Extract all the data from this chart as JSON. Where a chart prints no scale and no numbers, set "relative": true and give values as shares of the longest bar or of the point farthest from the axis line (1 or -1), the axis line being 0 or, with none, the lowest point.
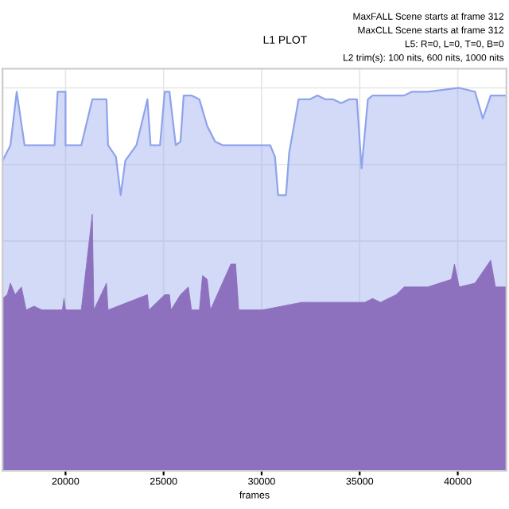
{
  "chart_data": {
    "type": "area",
    "title": "L1 PLOT",
    "xlabel": "frames",
    "annotations": [
      "MaxFALL Scene starts at frame 312",
      "MaxCLL Scene starts at frame 312",
      "L5: R=0, L=0, T=0, B=0",
      "L2 trim(s): 100 nits, 600 nits, 1000 nits"
    ],
    "relative": true,
    "xlim": [
      16788,
      42484
    ],
    "xticks": [
      20000,
      25000,
      30000,
      35000,
      40000
    ],
    "grid": true,
    "legend": false,
    "series": [
      {
        "color": "#8fa3ec",
        "x": [
          16788,
          17190,
          17510,
          17912,
          18394,
          19438,
          19599,
          20000,
          20001,
          20803,
          21365,
          21445,
          22088,
          22168,
          22570,
          22811,
          23051,
          23614,
          24176,
          24336,
          24818,
          25059,
          25300,
          25621,
          25862,
          26023,
          26424,
          26826,
          27227,
          27629,
          28030,
          28833,
          30038,
          30439,
          30680,
          30841,
          31242,
          31403,
          31884,
          32447,
          32848,
          33250,
          33651,
          34053,
          34454,
          34856,
          35096,
          35418,
          35659,
          36060,
          37265,
          37666,
          38469,
          40075,
          40878,
          41280,
          41681,
          42484
        ],
        "values": [
          0.81,
          0.85,
          0.99,
          0.85,
          0.85,
          0.85,
          0.99,
          0.99,
          0.85,
          0.85,
          0.97,
          0.97,
          0.97,
          0.85,
          0.82,
          0.72,
          0.81,
          0.85,
          0.97,
          0.85,
          0.85,
          0.99,
          0.99,
          0.85,
          0.86,
          0.98,
          0.98,
          0.97,
          0.9,
          0.86,
          0.85,
          0.85,
          0.85,
          0.85,
          0.82,
          0.72,
          0.72,
          0.83,
          0.97,
          0.97,
          0.98,
          0.97,
          0.97,
          0.96,
          0.97,
          0.97,
          0.79,
          0.97,
          0.98,
          0.98,
          0.98,
          0.99,
          0.99,
          1.0,
          0.99,
          0.92,
          0.98,
          0.98
        ]
      },
      {
        "color": "#8a6bba",
        "x": [
          16788,
          17029,
          17190,
          17430,
          17751,
          17993,
          18394,
          18796,
          19839,
          19920,
          20000,
          20803,
          21365,
          21445,
          22088,
          22168,
          24176,
          24256,
          25059,
          25300,
          25380,
          25862,
          26263,
          26424,
          26826,
          26986,
          27227,
          27388,
          28432,
          28672,
          28833,
          30038,
          32045,
          32848,
          33651,
          35257,
          35659,
          36060,
          36863,
          37265,
          38068,
          38469,
          39674,
          39834,
          40075,
          40878,
          41681,
          41922,
          42484
        ],
        "values": [
          0.45,
          0.46,
          0.49,
          0.46,
          0.48,
          0.42,
          0.43,
          0.42,
          0.42,
          0.45,
          0.42,
          0.42,
          0.67,
          0.42,
          0.49,
          0.42,
          0.46,
          0.42,
          0.46,
          0.46,
          0.42,
          0.46,
          0.48,
          0.42,
          0.42,
          0.51,
          0.5,
          0.42,
          0.54,
          0.54,
          0.42,
          0.42,
          0.44,
          0.44,
          0.44,
          0.44,
          0.45,
          0.44,
          0.46,
          0.48,
          0.48,
          0.48,
          0.5,
          0.54,
          0.48,
          0.49,
          0.55,
          0.48,
          0.48
        ]
      }
    ]
  }
}
